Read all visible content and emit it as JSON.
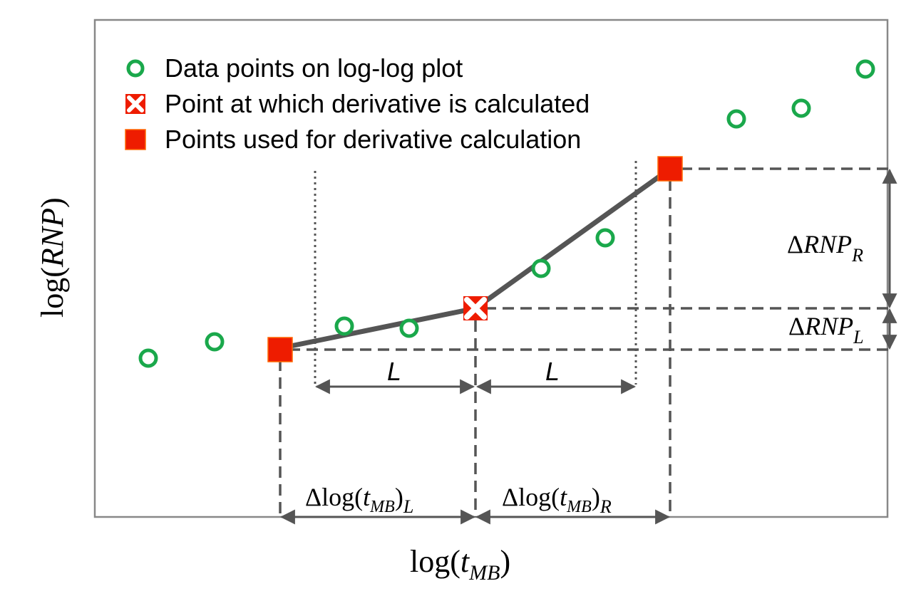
{
  "legend": {
    "items": [
      {
        "icon": "green-circle-icon",
        "label": "Data points on log-log plot"
      },
      {
        "icon": "red-cross-icon",
        "label": "Point at which derivative is calculated"
      },
      {
        "icon": "red-square-icon",
        "label": "Points used for derivative calculation"
      }
    ]
  },
  "axes": {
    "ylabel": {
      "pre": "log(",
      "var": "RNP",
      "post": ")"
    },
    "xlabel": {
      "pre": "log(",
      "var": "t",
      "sub": "MB",
      "post": ")"
    }
  },
  "annotations": {
    "L_left": "L",
    "L_right": "L",
    "delta_rnp_r": {
      "delta": "Δ",
      "var": "RNP",
      "sub": "R"
    },
    "delta_rnp_l": {
      "delta": "Δ",
      "var": "RNP",
      "sub": "L"
    },
    "delta_log_l": {
      "pre": "Δlog(",
      "var": "t",
      "sub": "MB",
      "post": ")",
      "sub2": "L"
    },
    "delta_log_r": {
      "pre": "Δlog(",
      "var": "t",
      "sub": "MB",
      "post": ")",
      "sub2": "R"
    }
  },
  "colors": {
    "data_point": "#1aa84b",
    "highlight": "#ee1c00",
    "line": "#555555",
    "frame": "#888888"
  }
}
